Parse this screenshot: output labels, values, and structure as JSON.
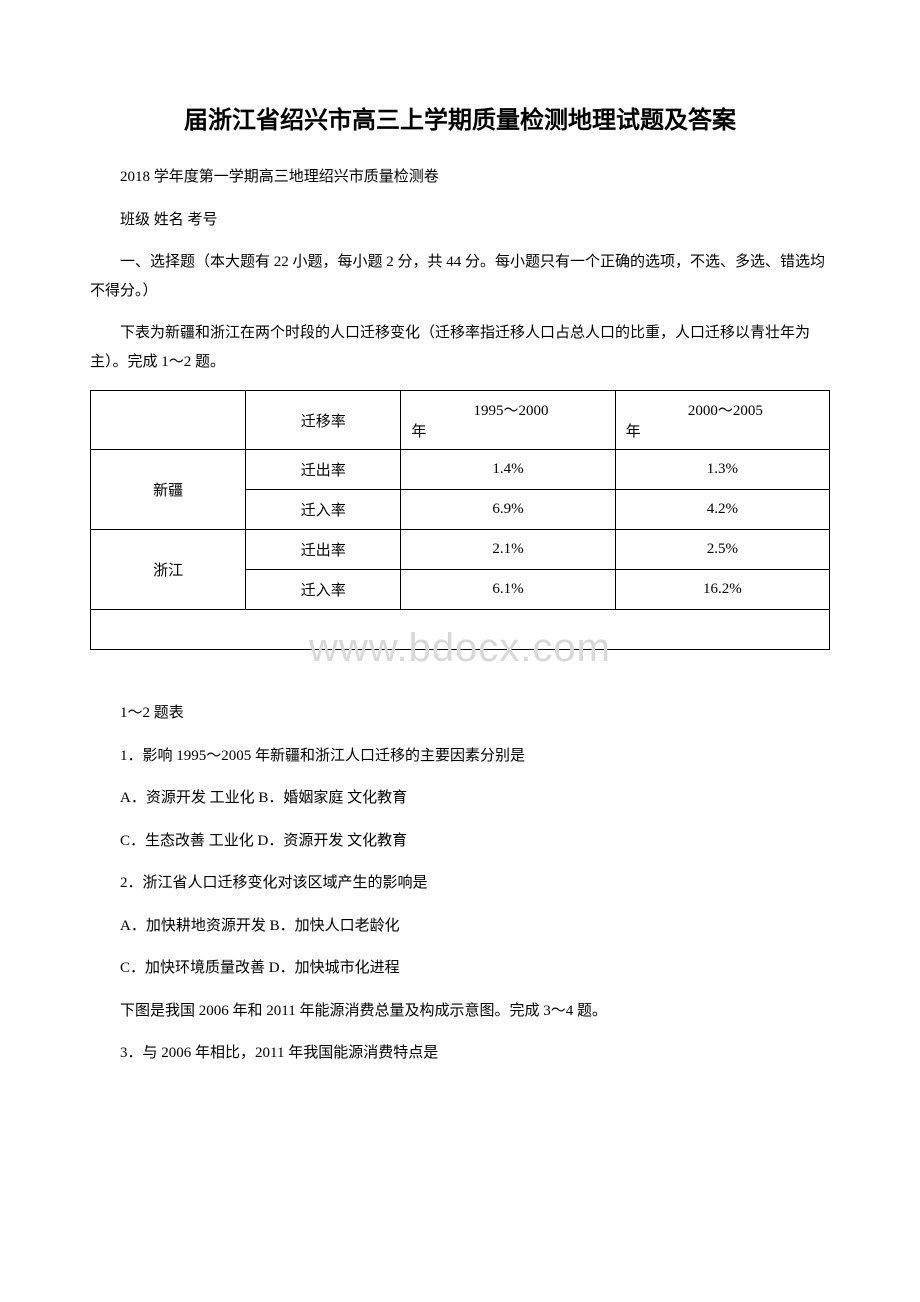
{
  "title": "届浙江省绍兴市高三上学期质量检测地理试题及答案",
  "subtitle": "2018 学年度第一学期高三地理绍兴市质量检测卷",
  "info_line": "班级 姓名 考号",
  "section1": "一、选择题（本大题有 22 小题，每小题 2 分，共 44 分。每小题只有一个正确的选项，不选、多选、错选均不得分。）",
  "intro1": "下表为新疆和浙江在两个时段的人口迁移变化（迁移率指迁移人口占总人口的比重，人口迁移以青壮年为主）。完成 1～2 题。",
  "table": {
    "header_col2": "迁移率",
    "header_col3_line1": "1995～2000",
    "header_col3_line2": "年",
    "header_col4_line1": "2000～2005",
    "header_col4_line2": "年",
    "row1_region": "新疆",
    "row1_out_label": "迁出率",
    "row1_out_v1": "1.4%",
    "row1_out_v2": "1.3%",
    "row1_in_label": "迁入率",
    "row1_in_v1": "6.9%",
    "row1_in_v2": "4.2%",
    "row2_region": "浙江",
    "row2_out_label": "迁出率",
    "row2_out_v1": "2.1%",
    "row2_out_v2": "2.5%",
    "row2_in_label": "迁入率",
    "row2_in_v1": "6.1%",
    "row2_in_v2": "16.2%"
  },
  "watermark": "www.bdocx.com",
  "caption1": "1～2 题表",
  "q1": "1．影响 1995～2005 年新疆和浙江人口迁移的主要因素分别是",
  "q1ab": "A．资源开发 工业化 B．婚姻家庭 文化教育",
  "q1cd": "C．生态改善 工业化 D．资源开发 文化教育",
  "q2": "2．浙江省人口迁移变化对该区域产生的影响是",
  "q2ab": "A．加快耕地资源开发 B．加快人口老龄化",
  "q2cd": "C．加快环境质量改善 D．加快城市化进程",
  "intro2": "下图是我国 2006 年和 2011 年能源消费总量及构成示意图。完成 3～4 题。",
  "q3": "3．与 2006 年相比，2011 年我国能源消费特点是"
}
